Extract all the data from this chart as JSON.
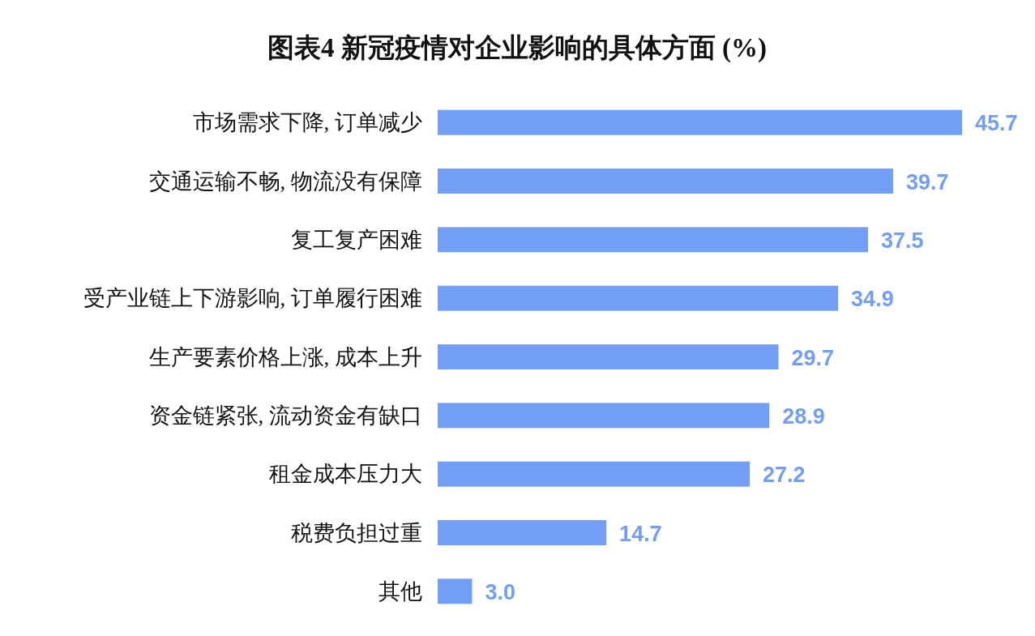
{
  "chart_data": {
    "type": "bar",
    "orientation": "horizontal",
    "title": "图表4  新冠疫情对企业影响的具体方面 (%)",
    "categories": [
      "市场需求下降, 订单减少",
      "交通运输不畅, 物流没有保障",
      "复工复产困难",
      "受产业链上下游影响, 订单履行困难",
      "生产要素价格上涨, 成本上升",
      "资金链紧张, 流动资金有缺口",
      "租金成本压力大",
      "税费负担过重",
      "其他"
    ],
    "values": [
      45.7,
      39.7,
      37.5,
      34.9,
      29.7,
      28.9,
      27.2,
      14.7,
      3.0
    ],
    "value_labels": [
      "45.7",
      "39.7",
      "37.5",
      "34.9",
      "29.7",
      "28.9",
      "27.2",
      "14.7",
      "3.0"
    ],
    "color": "#729ef7"
  }
}
